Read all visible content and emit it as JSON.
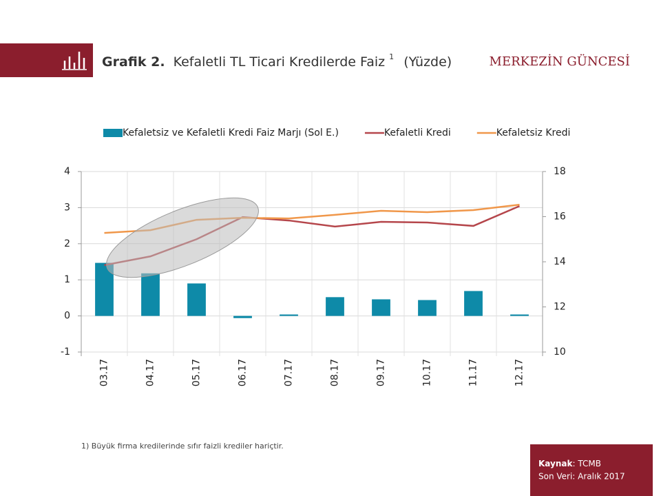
{
  "header": {
    "title_bold": "Grafik 2.",
    "title": "Kefaletli TL Ticari Kredilerde Faiz",
    "superscript": "1",
    "unit": "(Yüzde)",
    "brand": "MERKEZİN GÜNCESİ"
  },
  "footnote": "1) Büyük firma kredilerinde sıfır faizli krediler hariçtir.",
  "source": {
    "label": "Kaynak",
    "value": ": TCMB",
    "last": "Son Veri: Aralık 2017"
  },
  "chart_data": {
    "type": "combo",
    "categories": [
      "03.17",
      "04.17",
      "05.17",
      "06.17",
      "07.17",
      "08.17",
      "09.17",
      "10.17",
      "11.17",
      "12.17"
    ],
    "series": [
      {
        "name": "Kefaletsiz ve Kefaletli Kredi Faiz Marjı (Sol E.)",
        "type": "bar",
        "axis": "y",
        "color": "#0e8aa8",
        "values": [
          1.47,
          1.18,
          0.9,
          -0.06,
          0.04,
          0.52,
          0.46,
          0.44,
          0.69,
          0.04
        ]
      },
      {
        "name": "Kefaletli Kredi",
        "type": "line",
        "axis": "y2",
        "color": "#b5464b",
        "values": [
          13.85,
          14.24,
          15.0,
          15.98,
          15.83,
          15.56,
          15.77,
          15.74,
          15.59,
          16.47
        ]
      },
      {
        "name": "Kefaletsiz Kredi",
        "type": "line",
        "axis": "y2",
        "color": "#f0974a",
        "values": [
          15.28,
          15.4,
          15.86,
          15.95,
          15.92,
          16.08,
          16.26,
          16.2,
          16.29,
          16.53
        ]
      }
    ],
    "ylim": [
      -1,
      4
    ],
    "yticks": [
      -1,
      0,
      1,
      2,
      3,
      4
    ],
    "y2lim": [
      10,
      18
    ],
    "y2ticks": [
      10,
      12,
      14,
      16,
      18
    ],
    "grid": true
  }
}
